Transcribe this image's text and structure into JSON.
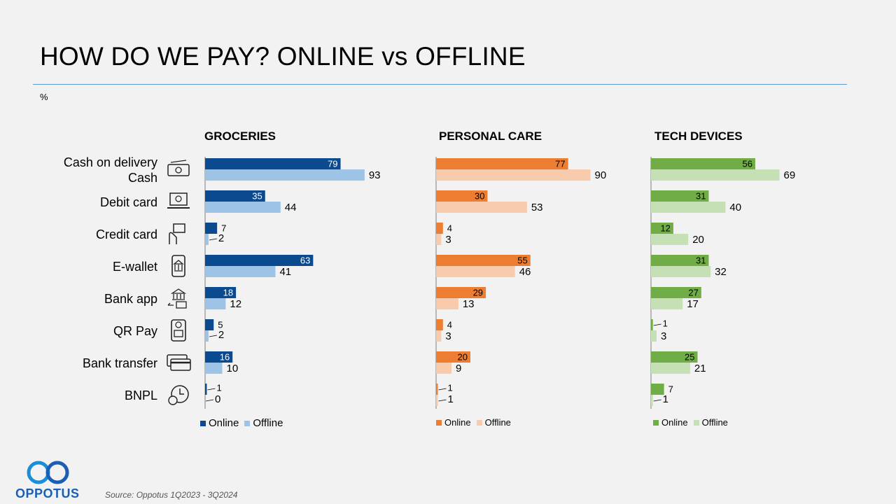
{
  "title": "HOW DO WE PAY? ONLINE vs OFFLINE",
  "unit": "%",
  "source": "Source: Oppotus 1Q2023 - 3Q2024",
  "logo_text": "OPPOTUS",
  "categories": [
    "Cash on delivery\nCash",
    "Debit card",
    "Credit card",
    "E-wallet",
    "Bank app",
    "QR Pay",
    "Bank transfer",
    "BNPL"
  ],
  "icons": [
    "cash-icon",
    "laptop-icon",
    "credit-card-hand-icon",
    "mobile-bank-icon",
    "bank-transfer-icon",
    "qr-phone-icon",
    "cards-icon",
    "clock-money-icon"
  ],
  "legend": {
    "online": "Online",
    "offline": "Offline"
  },
  "chart_data": [
    {
      "type": "bar",
      "title": "GROCERIES",
      "categories": [
        "Cash on delivery\nCash",
        "Debit card",
        "Credit card",
        "E-wallet",
        "Bank app",
        "QR Pay",
        "Bank transfer",
        "BNPL"
      ],
      "series": [
        {
          "name": "Online",
          "color": "#0b4a8f",
          "values": [
            79,
            35,
            7,
            63,
            18,
            5,
            16,
            1
          ]
        },
        {
          "name": "Offline",
          "color": "#9dc3e6",
          "values": [
            93,
            44,
            2,
            41,
            12,
            2,
            10,
            0
          ]
        }
      ]
    },
    {
      "type": "bar",
      "title": "PERSONAL CARE",
      "categories": [
        "Cash on delivery\nCash",
        "Debit card",
        "Credit card",
        "E-wallet",
        "Bank app",
        "QR Pay",
        "Bank transfer",
        "BNPL"
      ],
      "series": [
        {
          "name": "Online",
          "color": "#ed7d31",
          "values": [
            77,
            30,
            4,
            55,
            29,
            4,
            20,
            1
          ]
        },
        {
          "name": "Offline",
          "color": "#f8cbad",
          "values": [
            90,
            53,
            3,
            46,
            13,
            3,
            9,
            1
          ]
        }
      ]
    },
    {
      "type": "bar",
      "title": "TECH DEVICES",
      "categories": [
        "Cash on delivery\nCash",
        "Debit card",
        "Credit card",
        "E-wallet",
        "Bank app",
        "QR Pay",
        "Bank transfer",
        "BNPL"
      ],
      "series": [
        {
          "name": "Online",
          "color": "#70ad47",
          "values": [
            56,
            31,
            12,
            31,
            27,
            1,
            25,
            7
          ]
        },
        {
          "name": "Offline",
          "color": "#c5e0b4",
          "values": [
            69,
            40,
            20,
            32,
            17,
            3,
            21,
            1
          ]
        }
      ]
    }
  ]
}
